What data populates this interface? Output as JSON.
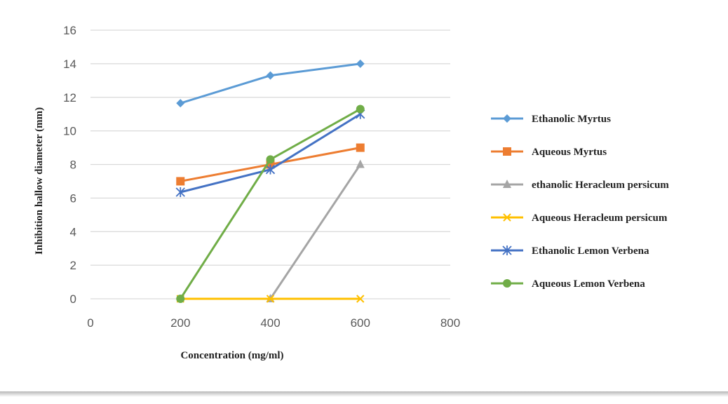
{
  "chart_data": {
    "type": "scatter",
    "title": "",
    "xlabel": "Concentration (mg/ml)",
    "ylabel": "Inhibition hallow diameter (mm)",
    "xlim": [
      0,
      800
    ],
    "ylim": [
      0,
      16
    ],
    "xticks": [
      "0",
      "200",
      "400",
      "600",
      "800"
    ],
    "yticks": [
      "0",
      "2",
      "4",
      "6",
      "8",
      "10",
      "12",
      "14",
      "16"
    ],
    "grid": true,
    "legend_position": "right",
    "series": [
      {
        "name": "Ethanolic Myrtus",
        "color": "#5b9bd5",
        "marker": "diamond",
        "x": [
          200,
          400,
          600
        ],
        "y": [
          11.65,
          13.3,
          14.0
        ]
      },
      {
        "name": "Aqueous Myrtus",
        "color": "#ed7d31",
        "marker": "square",
        "x": [
          200,
          400,
          600
        ],
        "y": [
          7.0,
          8.0,
          9.0
        ]
      },
      {
        "name": "ethanolic Heracleum persicum",
        "color": "#a5a5a5",
        "marker": "triangle",
        "x": [
          400,
          600
        ],
        "y": [
          0,
          8.0
        ]
      },
      {
        "name": "Aqueous Heracleum persicum",
        "color": "#ffc000",
        "marker": "x",
        "x": [
          200,
          400,
          600
        ],
        "y": [
          0,
          0,
          0
        ]
      },
      {
        "name": "Ethanolic Lemon Verbena",
        "color": "#4472c4",
        "marker": "star",
        "x": [
          200,
          400,
          600
        ],
        "y": [
          6.35,
          7.7,
          11.0
        ]
      },
      {
        "name": "Aqueous Lemon Verbena",
        "color": "#70ad47",
        "marker": "circle",
        "x": [
          200,
          400,
          600
        ],
        "y": [
          0,
          8.3,
          11.3
        ]
      }
    ]
  }
}
